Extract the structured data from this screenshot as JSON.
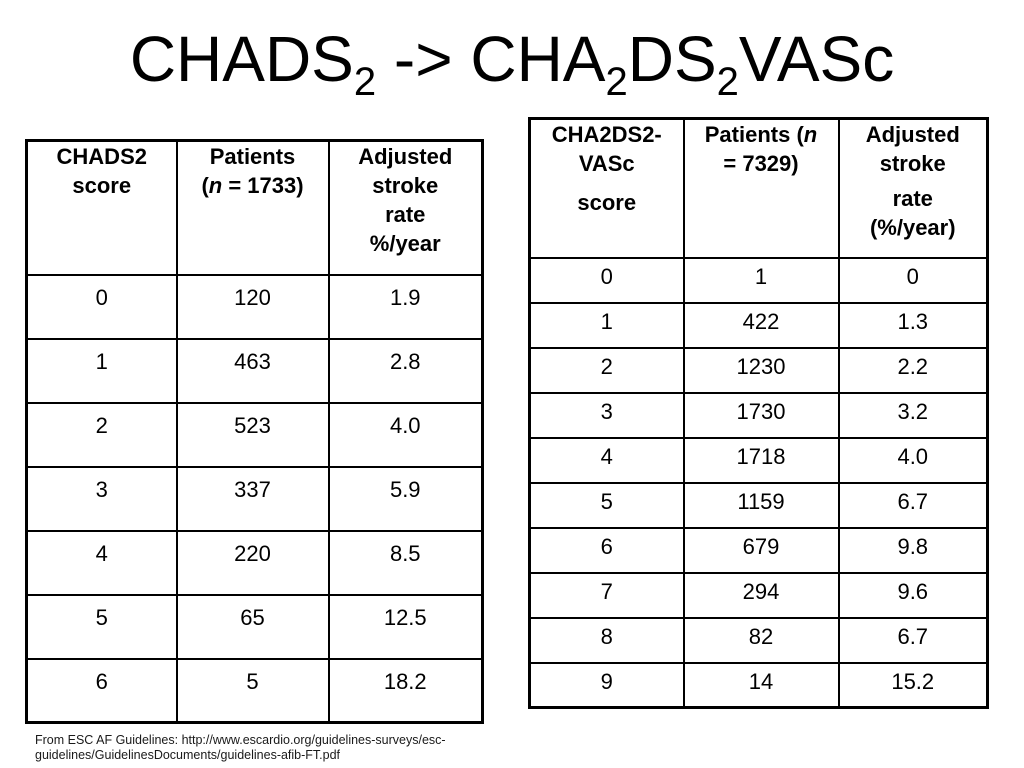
{
  "title": {
    "part1": "CHADS",
    "sub1": "2",
    "arrow": " -> ",
    "part2": "CHA",
    "sub2": "2",
    "part3": "DS",
    "sub3": "2",
    "part4": "VASc"
  },
  "left_table": {
    "header": {
      "col1_lines": [
        "CHADS2",
        "score"
      ],
      "col2": {
        "line1": "Patients",
        "paren_open": "(",
        "n": "n",
        "rest": " = 1733)"
      },
      "col3_lines": [
        "Adjusted",
        "stroke",
        "rate",
        "%/year"
      ]
    },
    "rows": [
      [
        "0",
        "120",
        "1.9"
      ],
      [
        "1",
        "463",
        "2.8"
      ],
      [
        "2",
        "523",
        "4.0"
      ],
      [
        "3",
        "337",
        "5.9"
      ],
      [
        "4",
        "220",
        "8.5"
      ],
      [
        "5",
        "65",
        "12.5"
      ],
      [
        "6",
        "5",
        "18.2"
      ]
    ]
  },
  "right_table": {
    "header": {
      "col1_lines": [
        "CHA2DS2-",
        "VASc",
        "score"
      ],
      "col2": {
        "line1_prefix": "Patients (",
        "n": "n",
        "line2": "= 7329)"
      },
      "col3_lines": [
        "Adjusted",
        "stroke",
        "rate",
        "(%/year)"
      ]
    },
    "rows": [
      [
        "0",
        "1",
        "0"
      ],
      [
        "1",
        "422",
        "1.3"
      ],
      [
        "2",
        "1230",
        "2.2"
      ],
      [
        "3",
        "1730",
        "3.2"
      ],
      [
        "4",
        "1718",
        "4.0"
      ],
      [
        "5",
        "1159",
        "6.7"
      ],
      [
        "6",
        "679",
        "9.8"
      ],
      [
        "7",
        "294",
        "9.6"
      ],
      [
        "8",
        "82",
        "6.7"
      ],
      [
        "9",
        "14",
        "15.2"
      ]
    ]
  },
  "footer": {
    "lines": [
      "From ESC AF Guidelines: http://www.escardio.org/guidelines-surveys/esc-",
      "guidelines/GuidelinesDocuments/guidelines-afib-FT.pdf"
    ]
  },
  "colors": {
    "background": "#ffffff",
    "text": "#000000",
    "border": "#000000"
  }
}
